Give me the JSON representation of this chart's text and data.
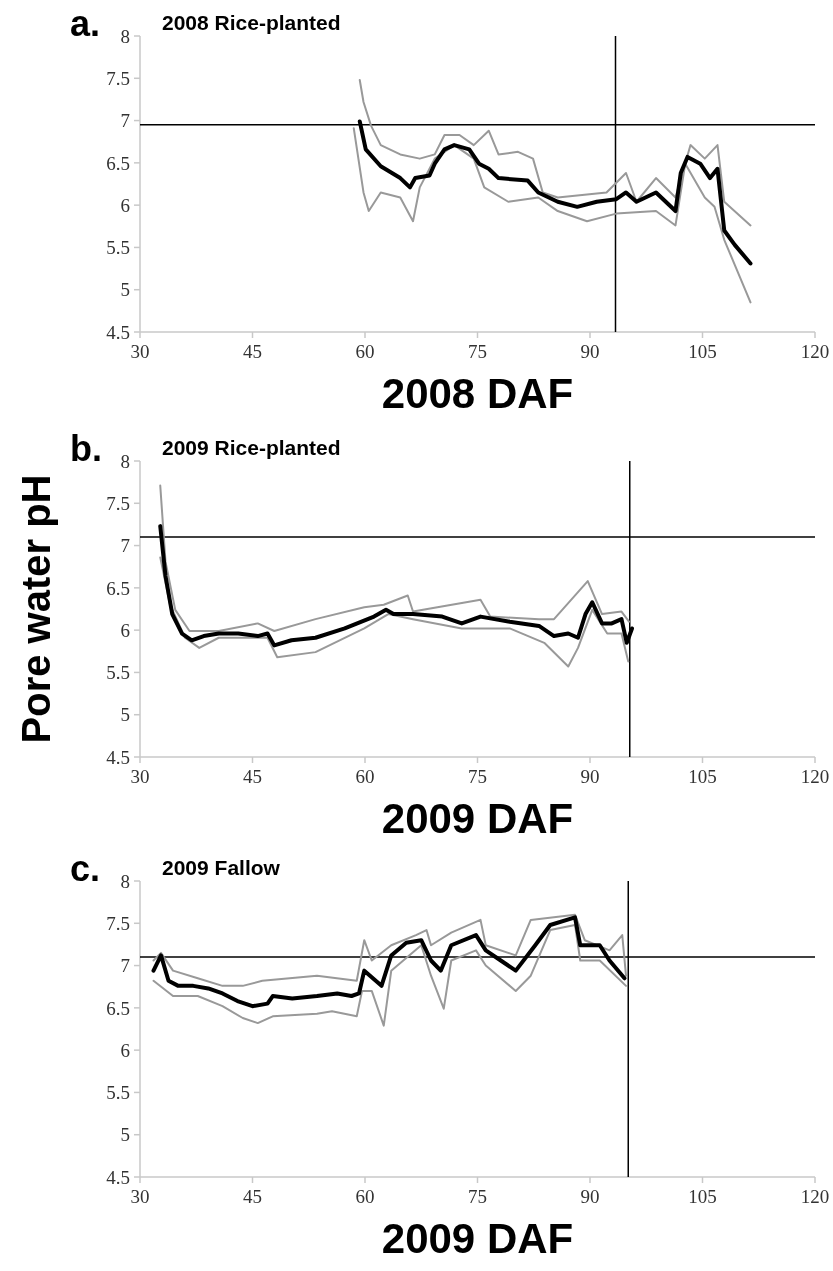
{
  "chart_data": [
    {
      "type": "line",
      "title": "2008 Rice-planted",
      "xlabel": "2008 DAF",
      "annotations": [
        "a."
      ],
      "xlim": [
        30,
        120
      ],
      "xticks": [
        30,
        45,
        60,
        75,
        90,
        105,
        120
      ],
      "ylim": [
        4.5,
        8
      ],
      "yticks": [
        4.5,
        5,
        5.5,
        6,
        6.5,
        7,
        7.5,
        8
      ],
      "ref_lines": [
        {
          "axis": "y",
          "value": 6.95,
          "color": "#000000"
        },
        {
          "axis": "x",
          "value": 93.4,
          "color": "#000000"
        }
      ],
      "series": [
        {
          "color": "#000000",
          "x": [
            59.3,
            60.1,
            62.1,
            64.7,
            66.0,
            66.7,
            68.6,
            69.3,
            70.6,
            71.9,
            73.9,
            75.2,
            76.5,
            77.8,
            81.7,
            83.1,
            85.7,
            88.3,
            90.9,
            93.5,
            94.8,
            96.2,
            98.8,
            101.4,
            102.1,
            103.0,
            104.7,
            106.0,
            107.0,
            107.9,
            109.3,
            111.4
          ],
          "values": [
            6.99,
            6.66,
            6.46,
            6.32,
            6.21,
            6.32,
            6.35,
            6.49,
            6.66,
            6.71,
            6.66,
            6.49,
            6.43,
            6.32,
            6.29,
            6.15,
            6.04,
            5.98,
            6.04,
            6.07,
            6.15,
            6.04,
            6.15,
            5.93,
            6.38,
            6.57,
            6.49,
            6.32,
            6.43,
            5.7,
            5.53,
            5.31
          ]
        },
        {
          "color": "#999999",
          "x": [
            59.3,
            59.8,
            60.8,
            62.1,
            64.7,
            67.3,
            69.3,
            70.6,
            72.6,
            74.5,
            76.5,
            77.8,
            80.4,
            82.4,
            83.7,
            85.7,
            92.2,
            94.8,
            96.2,
            98.8,
            101.4,
            103.4,
            105.3,
            107.0,
            107.9,
            111.4
          ],
          "values": [
            7.48,
            7.22,
            6.94,
            6.71,
            6.6,
            6.55,
            6.6,
            6.83,
            6.83,
            6.71,
            6.88,
            6.6,
            6.63,
            6.55,
            6.15,
            6.09,
            6.15,
            6.38,
            6.04,
            6.32,
            6.09,
            6.71,
            6.55,
            6.71,
            6.04,
            5.76
          ]
        },
        {
          "color": "#999999",
          "x": [
            58.5,
            59.8,
            60.5,
            62.1,
            64.7,
            66.4,
            67.3,
            69.3,
            71.9,
            74.5,
            75.9,
            79.1,
            83.1,
            85.7,
            89.6,
            93.5,
            98.8,
            101.4,
            102.7,
            105.3,
            106.6,
            107.9,
            111.4
          ],
          "values": [
            6.91,
            6.15,
            5.93,
            6.15,
            6.09,
            5.81,
            6.21,
            6.55,
            6.71,
            6.55,
            6.21,
            6.04,
            6.09,
            5.93,
            5.81,
            5.9,
            5.93,
            5.76,
            6.49,
            6.09,
            5.98,
            5.59,
            4.85
          ]
        }
      ]
    },
    {
      "type": "line",
      "title": "2009 Rice-planted",
      "xlabel": "2009 DAF",
      "ylabel": "Pore water pH",
      "annotations": [
        "b."
      ],
      "xlim": [
        30,
        120
      ],
      "xticks": [
        30,
        45,
        60,
        75,
        90,
        105,
        120
      ],
      "ylim": [
        4.5,
        8
      ],
      "yticks": [
        4.5,
        5,
        5.5,
        6,
        6.5,
        7,
        7.5,
        8
      ],
      "ref_lines": [
        {
          "axis": "y",
          "value": 7.1,
          "color": "#000000"
        },
        {
          "axis": "x",
          "value": 95.3,
          "color": "#000000"
        }
      ],
      "series": [
        {
          "color": "#000000",
          "x": [
            32.7,
            33.4,
            34.3,
            35.6,
            36.9,
            38.5,
            40.5,
            43.1,
            45.7,
            47.0,
            47.9,
            50.2,
            53.4,
            57.3,
            61.2,
            62.8,
            63.8,
            66.4,
            70.3,
            72.9,
            75.4,
            79.3,
            83.2,
            85.2,
            87.1,
            88.4,
            89.4,
            90.3,
            91.6,
            92.9,
            94.2,
            94.9,
            95.6
          ],
          "values": [
            7.23,
            6.64,
            6.19,
            5.96,
            5.88,
            5.93,
            5.96,
            5.96,
            5.93,
            5.96,
            5.82,
            5.88,
            5.91,
            6.02,
            6.16,
            6.24,
            6.19,
            6.19,
            6.16,
            6.08,
            6.16,
            6.1,
            6.05,
            5.93,
            5.96,
            5.91,
            6.19,
            6.33,
            6.08,
            6.08,
            6.13,
            5.85,
            6.02
          ]
        },
        {
          "color": "#999999",
          "x": [
            32.7,
            33.4,
            34.7,
            36.6,
            40.5,
            45.7,
            47.9,
            53.4,
            59.9,
            62.5,
            65.7,
            66.4,
            75.4,
            76.7,
            83.2,
            85.2,
            89.7,
            91.6,
            94.2,
            95.2
          ],
          "values": [
            7.71,
            6.81,
            6.24,
            5.99,
            5.99,
            6.08,
            5.99,
            6.13,
            6.27,
            6.3,
            6.41,
            6.22,
            6.36,
            6.16,
            6.13,
            6.13,
            6.58,
            6.19,
            6.22,
            6.1
          ]
        },
        {
          "color": "#999999",
          "x": [
            32.7,
            34.0,
            36.0,
            37.9,
            40.5,
            47.0,
            48.3,
            53.4,
            59.9,
            63.1,
            66.4,
            72.9,
            79.3,
            83.9,
            87.1,
            88.4,
            90.3,
            92.3,
            94.2,
            95.1
          ],
          "values": [
            6.86,
            6.3,
            5.91,
            5.79,
            5.91,
            5.91,
            5.68,
            5.74,
            6.02,
            6.19,
            6.13,
            6.02,
            6.02,
            5.85,
            5.57,
            5.79,
            6.24,
            5.96,
            5.96,
            5.63
          ]
        }
      ]
    },
    {
      "type": "line",
      "title": "2009 Fallow",
      "xlabel": "2009 DAF",
      "annotations": [
        "c."
      ],
      "xlim": [
        30,
        120
      ],
      "xticks": [
        30,
        45,
        60,
        75,
        90,
        105,
        120
      ],
      "ylim": [
        4.5,
        8
      ],
      "yticks": [
        4.5,
        5,
        5.5,
        6,
        6.5,
        7,
        7.5,
        8
      ],
      "ref_lines": [
        {
          "axis": "y",
          "value": 7.1,
          "color": "#000000"
        },
        {
          "axis": "x",
          "value": 95.1,
          "color": "#000000"
        }
      ],
      "series": [
        {
          "color": "#000000",
          "x": [
            31.8,
            32.8,
            33.8,
            35.1,
            37.1,
            39.1,
            41.0,
            43.0,
            45.0,
            47.0,
            47.7,
            50.3,
            53.6,
            56.3,
            58.2,
            59.2,
            59.9,
            62.2,
            63.5,
            65.5,
            67.5,
            68.8,
            70.1,
            71.5,
            74.8,
            76.1,
            78.1,
            80.1,
            82.7,
            84.7,
            88.0,
            88.7,
            91.3,
            92.6,
            94.6
          ],
          "values": [
            6.94,
            7.12,
            6.82,
            6.76,
            6.76,
            6.73,
            6.67,
            6.58,
            6.52,
            6.55,
            6.64,
            6.61,
            6.64,
            6.67,
            6.64,
            6.67,
            6.94,
            6.76,
            7.12,
            7.27,
            7.3,
            7.06,
            6.94,
            7.24,
            7.36,
            7.18,
            7.06,
            6.94,
            7.24,
            7.48,
            7.57,
            7.24,
            7.24,
            7.06,
            6.85
          ]
        },
        {
          "color": "#999999",
          "x": [
            31.8,
            32.8,
            34.4,
            37.7,
            41.0,
            43.7,
            46.3,
            53.6,
            58.9,
            59.9,
            60.9,
            63.5,
            66.8,
            68.2,
            68.8,
            71.5,
            75.4,
            76.1,
            80.1,
            82.1,
            88.0,
            89.3,
            92.6,
            94.3,
            94.8
          ],
          "values": [
            7.06,
            7.15,
            6.94,
            6.85,
            6.76,
            6.76,
            6.82,
            6.88,
            6.82,
            7.3,
            7.06,
            7.24,
            7.36,
            7.42,
            7.24,
            7.39,
            7.54,
            7.24,
            7.12,
            7.54,
            7.6,
            7.3,
            7.18,
            7.36,
            6.88
          ]
        },
        {
          "color": "#999999",
          "x": [
            31.8,
            34.4,
            37.7,
            41.0,
            43.7,
            45.7,
            47.7,
            53.6,
            55.6,
            58.9,
            59.6,
            60.9,
            62.5,
            63.5,
            67.5,
            68.8,
            70.5,
            71.5,
            74.8,
            76.1,
            80.1,
            82.1,
            84.7,
            88.0,
            88.7,
            91.3,
            94.8
          ],
          "values": [
            6.82,
            6.64,
            6.64,
            6.52,
            6.38,
            6.32,
            6.4,
            6.43,
            6.46,
            6.4,
            6.7,
            6.7,
            6.29,
            6.94,
            7.24,
            6.88,
            6.49,
            7.06,
            7.18,
            7.0,
            6.7,
            6.88,
            7.42,
            7.48,
            7.06,
            7.06,
            6.76
          ]
        }
      ]
    }
  ]
}
